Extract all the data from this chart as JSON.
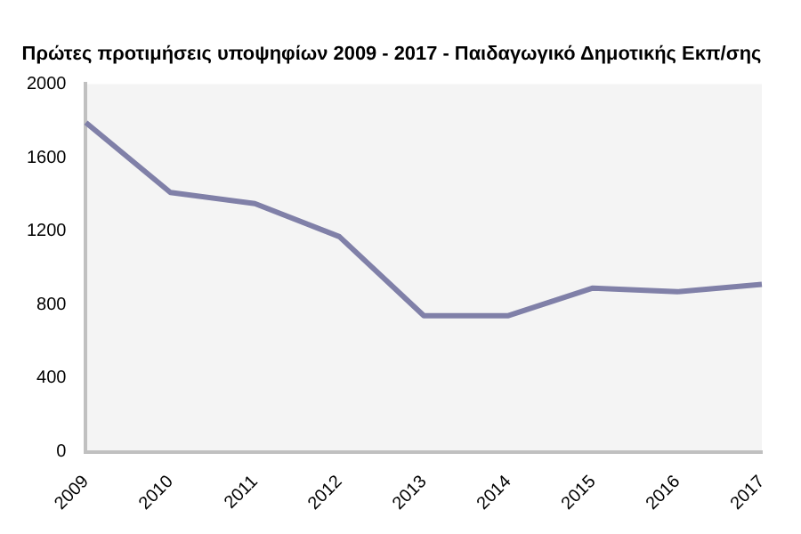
{
  "chart_data": {
    "type": "line",
    "title": "Πρώτες προτιμήσεις υποψηφίων 2009 - 2017 - Παιδαγωγικό Δημοτικής Εκπ/σης",
    "categories": [
      "2009",
      "2010",
      "2011",
      "2012",
      "2013",
      "2014",
      "2015",
      "2016",
      "2017"
    ],
    "values": [
      1790,
      1410,
      1350,
      1170,
      740,
      740,
      890,
      870,
      910
    ],
    "color": "#8080a8",
    "ylim": [
      0,
      2000
    ],
    "yticks": [
      0,
      400,
      800,
      1200,
      1600,
      2000
    ],
    "grid": false,
    "legend": false,
    "marker": "none",
    "line_style": "solid"
  }
}
